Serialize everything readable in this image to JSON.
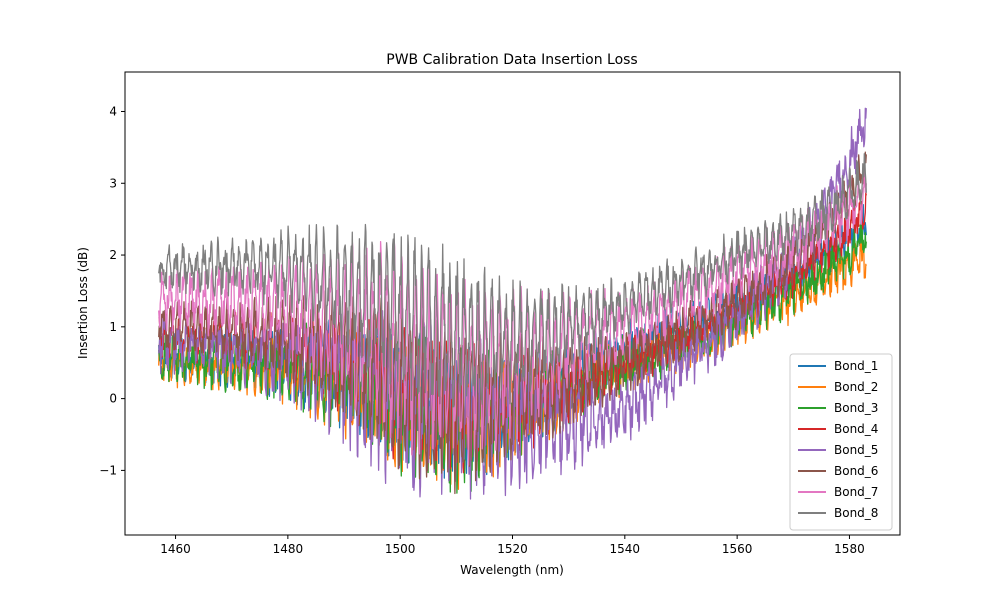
{
  "chart_data": {
    "type": "line",
    "title": "PWB Calibration Data Insertion Loss",
    "xlabel": "Wavelength (nm)",
    "ylabel": "Insertion Loss (dB)",
    "xlim": [
      1451,
      1589
    ],
    "ylim": [
      -1.9,
      4.55
    ],
    "xticks": [
      1460,
      1480,
      1500,
      1520,
      1540,
      1560,
      1580
    ],
    "yticks": [
      -1,
      0,
      1,
      2,
      3,
      4
    ],
    "grid": false,
    "legend_position": "lower-right",
    "x_range": [
      1457,
      1583
    ],
    "baseline_x": [
      1457,
      1470,
      1480,
      1490,
      1500,
      1510,
      1520,
      1530,
      1540,
      1550,
      1560,
      1570,
      1575,
      1580,
      1583
    ],
    "series": [
      {
        "name": "Bond_1",
        "color": "#1f77b4",
        "noise": 0.2,
        "osc": 0.15,
        "baseline": [
          0.6,
          0.55,
          0.5,
          0.35,
          0.05,
          -0.2,
          -0.1,
          0.3,
          0.7,
          1.0,
          1.3,
          1.75,
          2.0,
          2.3,
          2.5
        ]
      },
      {
        "name": "Bond_2",
        "color": "#ff7f0e",
        "noise": 0.2,
        "osc": 0.15,
        "baseline": [
          0.5,
          0.45,
          0.4,
          0.25,
          -0.05,
          -0.3,
          -0.15,
          0.1,
          0.45,
          0.7,
          1.05,
          1.4,
          1.6,
          1.85,
          2.0
        ]
      },
      {
        "name": "Bond_3",
        "color": "#2ca02c",
        "noise": 0.22,
        "osc": 0.15,
        "baseline": [
          0.55,
          0.5,
          0.45,
          0.3,
          -0.05,
          -0.35,
          -0.15,
          0.15,
          0.5,
          0.75,
          1.1,
          1.5,
          1.75,
          2.05,
          2.3
        ]
      },
      {
        "name": "Bond_4",
        "color": "#d62728",
        "noise": 0.2,
        "osc": 0.15,
        "baseline": [
          0.9,
          0.8,
          0.75,
          0.5,
          0.1,
          -0.15,
          -0.1,
          0.15,
          0.5,
          0.85,
          1.25,
          1.7,
          2.0,
          2.35,
          2.7
        ]
      },
      {
        "name": "Bond_5",
        "color": "#9467bd",
        "noise": 0.25,
        "osc": 0.2,
        "baseline": [
          0.8,
          0.7,
          0.6,
          0.35,
          0.0,
          -0.3,
          -0.4,
          -0.35,
          -0.2,
          0.5,
          1.1,
          1.9,
          2.5,
          3.3,
          3.9
        ]
      },
      {
        "name": "Bond_6",
        "color": "#8c564b",
        "noise": 0.2,
        "osc": 0.2,
        "baseline": [
          1.0,
          0.95,
          0.85,
          0.6,
          0.15,
          -0.1,
          0.05,
          0.2,
          0.5,
          0.9,
          1.35,
          1.9,
          2.3,
          2.8,
          3.3
        ]
      },
      {
        "name": "Bond_7",
        "color": "#e377c2",
        "noise": 0.22,
        "osc": 0.25,
        "baseline": [
          1.4,
          1.35,
          1.25,
          1.05,
          0.75,
          0.4,
          0.5,
          0.8,
          1.0,
          1.35,
          1.75,
          2.15,
          2.4,
          2.65,
          2.85
        ]
      },
      {
        "name": "Bond_8",
        "color": "#7f7f7f",
        "noise": 0.18,
        "osc": 0.2,
        "baseline": [
          1.8,
          1.85,
          1.8,
          1.55,
          1.2,
          0.85,
          0.8,
          1.0,
          1.3,
          1.65,
          2.0,
          2.3,
          2.55,
          2.85,
          3.1
        ]
      }
    ]
  }
}
